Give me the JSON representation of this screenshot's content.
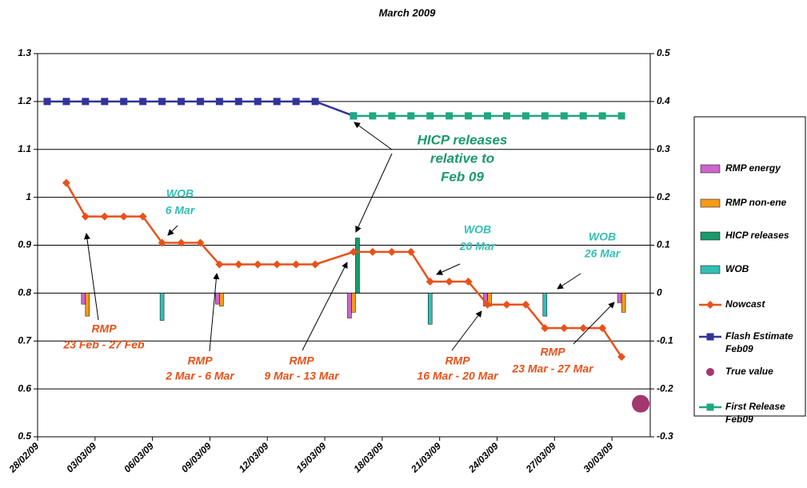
{
  "chart_data": {
    "type": "line",
    "title": "March 2009",
    "xlim": [
      "2009-02-28",
      "2009-04-01"
    ],
    "xticks": [
      {
        "value": "2009-02-28",
        "label": "28/02/09"
      },
      {
        "value": "2009-03-03",
        "label": "03/03/09"
      },
      {
        "value": "2009-03-06",
        "label": "06/03/09"
      },
      {
        "value": "2009-03-09",
        "label": "09/03/09"
      },
      {
        "value": "2009-03-12",
        "label": "12/03/09"
      },
      {
        "value": "2009-03-15",
        "label": "15/03/09"
      },
      {
        "value": "2009-03-18",
        "label": "18/03/09"
      },
      {
        "value": "2009-03-21",
        "label": "21/03/09"
      },
      {
        "value": "2009-03-24",
        "label": "24/03/09"
      },
      {
        "value": "2009-03-27",
        "label": "27/03/09"
      },
      {
        "value": "2009-03-30",
        "label": "30/03/09"
      }
    ],
    "ylim": [
      0.5,
      1.3
    ],
    "yticks": [
      0.5,
      0.6,
      0.7,
      0.8,
      0.9,
      1,
      1.1,
      1.2,
      1.3
    ],
    "y2lim": [
      -0.3,
      0.5
    ],
    "y2ticks": [
      -0.3,
      -0.2,
      -0.1,
      0,
      0.1,
      0.2,
      0.3,
      0.4,
      0.5
    ],
    "grid": true,
    "legend": "right",
    "series": [
      {
        "name": "RMP energy",
        "type": "bar",
        "axis": "y2",
        "color": "#cc66cc",
        "x": [
          "2009-03-02",
          "2009-03-09",
          "2009-03-16",
          "2009-03-23",
          "2009-03-30"
        ],
        "values": [
          -0.023,
          -0.023,
          -0.052,
          -0.027,
          -0.02
        ]
      },
      {
        "name": "RMP non-ene",
        "type": "bar",
        "axis": "y2",
        "color": "#f59a1c",
        "x": [
          "2009-03-02",
          "2009-03-09",
          "2009-03-16",
          "2009-03-23",
          "2009-03-30"
        ],
        "values": [
          -0.048,
          -0.027,
          -0.04,
          -0.027,
          -0.04
        ]
      },
      {
        "name": "HICP releases",
        "type": "bar",
        "axis": "y2",
        "color": "#1a9a6a",
        "x": [
          "2009-03-16"
        ],
        "values": [
          0.115
        ]
      },
      {
        "name": "WOB",
        "type": "bar",
        "axis": "y2",
        "color": "#33bfb5",
        "x": [
          "2009-03-06",
          "2009-03-20",
          "2009-03-26"
        ],
        "values": [
          -0.057,
          -0.065,
          -0.048
        ]
      },
      {
        "name": "Nowcast",
        "type": "line",
        "marker": "diamond",
        "color": "#e8521a",
        "x": [
          "2009-03-01",
          "2009-03-02",
          "2009-03-03",
          "2009-03-04",
          "2009-03-05",
          "2009-03-06",
          "2009-03-07",
          "2009-03-08",
          "2009-03-09",
          "2009-03-10",
          "2009-03-11",
          "2009-03-12",
          "2009-03-13",
          "2009-03-14",
          "2009-03-16",
          "2009-03-17",
          "2009-03-18",
          "2009-03-19",
          "2009-03-20",
          "2009-03-21",
          "2009-03-22",
          "2009-03-23",
          "2009-03-24",
          "2009-03-25",
          "2009-03-26",
          "2009-03-27",
          "2009-03-28",
          "2009-03-29",
          "2009-03-30"
        ],
        "values": [
          1.03,
          0.96,
          0.96,
          0.96,
          0.96,
          0.905,
          0.905,
          0.905,
          0.86,
          0.86,
          0.86,
          0.86,
          0.86,
          0.86,
          0.886,
          0.886,
          0.886,
          0.886,
          0.824,
          0.824,
          0.824,
          0.776,
          0.776,
          0.776,
          0.727,
          0.727,
          0.727,
          0.727,
          0.667
        ]
      },
      {
        "name": "Flash Estimate Feb09",
        "type": "line",
        "marker": "square",
        "color": "#333399",
        "x": [
          "2009-02-28",
          "2009-03-01",
          "2009-03-02",
          "2009-03-03",
          "2009-03-04",
          "2009-03-05",
          "2009-03-06",
          "2009-03-07",
          "2009-03-08",
          "2009-03-09",
          "2009-03-10",
          "2009-03-11",
          "2009-03-12",
          "2009-03-13",
          "2009-03-14",
          "2009-03-16"
        ],
        "values": [
          1.2,
          1.2,
          1.2,
          1.2,
          1.2,
          1.2,
          1.2,
          1.2,
          1.2,
          1.2,
          1.2,
          1.2,
          1.2,
          1.2,
          1.2,
          1.17
        ]
      },
      {
        "name": "True value",
        "type": "scatter",
        "color": "#a3386e",
        "x": [
          "2009-03-31"
        ],
        "values": [
          0.569
        ]
      },
      {
        "name": "First Release Feb09",
        "type": "line",
        "marker": "square",
        "color": "#1ea883",
        "x": [
          "2009-03-16",
          "2009-03-17",
          "2009-03-18",
          "2009-03-19",
          "2009-03-20",
          "2009-03-21",
          "2009-03-22",
          "2009-03-23",
          "2009-03-24",
          "2009-03-25",
          "2009-03-26",
          "2009-03-27",
          "2009-03-28",
          "2009-03-29",
          "2009-03-30"
        ],
        "values": [
          1.17,
          1.17,
          1.17,
          1.17,
          1.17,
          1.17,
          1.17,
          1.17,
          1.17,
          1.17,
          1.17,
          1.17,
          1.17,
          1.17,
          1.17
        ]
      }
    ],
    "annotations": [
      {
        "lines": [
          "HICP releases",
          "relative to",
          "Feb 09"
        ],
        "color": "#1a9a6a"
      },
      {
        "lines": [
          "WOB",
          "6 Mar"
        ],
        "color": "#33bfb5"
      },
      {
        "lines": [
          "WOB",
          "20 Mar"
        ],
        "color": "#33bfb5"
      },
      {
        "lines": [
          "WOB",
          "26 Mar"
        ],
        "color": "#33bfb5"
      },
      {
        "lines": [
          "RMP",
          "23 Feb - 27 Feb"
        ],
        "color": "#e8521a"
      },
      {
        "lines": [
          "RMP",
          "2 Mar - 6 Mar"
        ],
        "color": "#e8521a"
      },
      {
        "lines": [
          "RMP",
          "9 Mar - 13 Mar"
        ],
        "color": "#e8521a"
      },
      {
        "lines": [
          "RMP",
          "16 Mar - 20 Mar"
        ],
        "color": "#e8521a"
      },
      {
        "lines": [
          "RMP",
          "23 Mar - 27 Mar"
        ],
        "color": "#e8521a"
      }
    ]
  }
}
